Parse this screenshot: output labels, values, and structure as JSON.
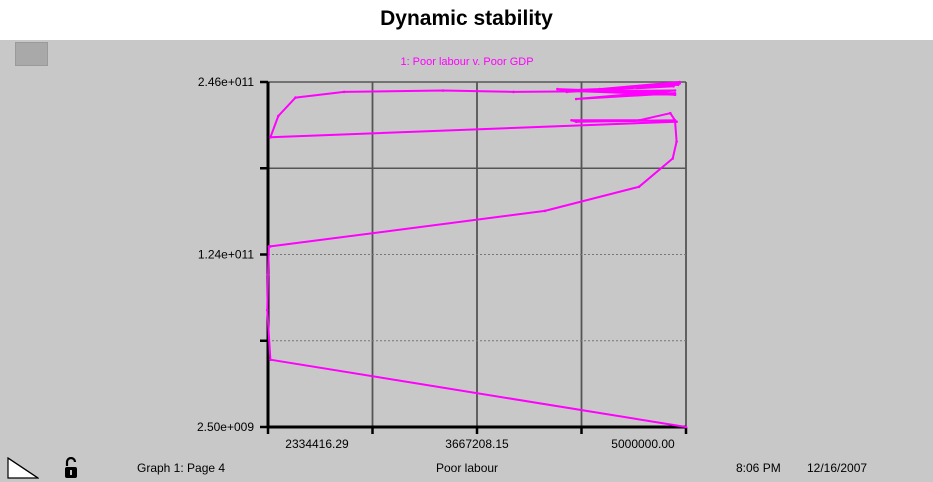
{
  "window": {
    "title": "Dynamic stability"
  },
  "footer": {
    "graph_page": "Graph 1: Page 4",
    "x_axis_label": "Poor labour",
    "time": "8:06 PM",
    "date": "12/16/2007"
  },
  "icons": {
    "page_turn": "page-turn-icon",
    "lock": "lock-icon"
  },
  "colors": {
    "series": "#ff00ff",
    "panel": "#c8c8c8",
    "grid": "#555555"
  },
  "chart_data": {
    "type": "line",
    "title": "Dynamic stability",
    "series": [
      {
        "name": "1: Poor labour v. Poor GDP",
        "x": [
          5000000,
          2350000,
          2330000,
          2334416.29,
          2340000,
          2350000,
          4100000,
          4700000,
          4915000,
          4940000,
          4930000,
          4900000,
          4700000,
          4270000,
          4300000,
          4920000,
          4940000,
          2350000,
          2400000,
          2510000,
          2820000,
          3450000,
          3900000,
          4930000,
          4300000,
          4930000,
          4180000,
          4930000,
          4200000,
          4920000,
          4240000,
          4950000,
          4400000,
          4960000,
          4450000,
          4960000
        ],
        "y": [
          2500000000,
          50000000000,
          85000000000,
          110000000000,
          130000000000,
          130000000000,
          155000000000,
          172000000000,
          192000000000,
          204000000000,
          219000000000,
          224000000000,
          219000000000,
          219000000000,
          218000000000,
          219000000000,
          218000000000,
          207000000000,
          222000000000,
          235000000000,
          239000000000,
          240000000000,
          239000000000,
          240000000000,
          234000000000,
          238000000000,
          241000000000,
          237000000000,
          240000000000,
          243000000000,
          239000000000,
          244000000000,
          240000000000,
          245000000000,
          241000000000,
          246000000000
        ]
      }
    ],
    "xlabel": "Poor labour",
    "xticks": [
      "2334416.29",
      "3667208.15",
      "5000000.00"
    ],
    "xlim": [
      2334416.29,
      5000000
    ],
    "yticks": [
      "2.46e+011",
      "1.24e+011",
      "2.50e+009"
    ],
    "ylim": [
      2500000000,
      246000000000
    ],
    "grid": true
  }
}
